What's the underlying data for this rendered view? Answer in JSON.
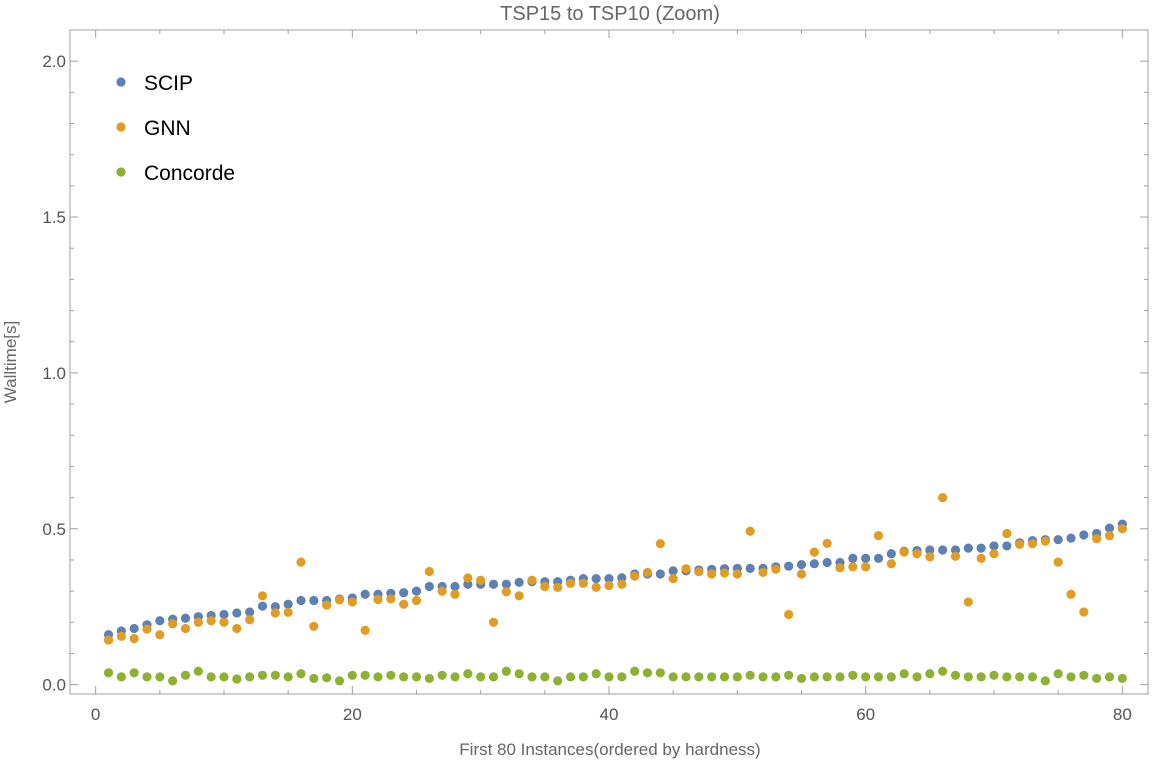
{
  "chart_data": {
    "type": "scatter",
    "title": "TSP15 to TSP10 (Zoom)",
    "xlabel": "First 80 Instances(ordered by hardness)",
    "ylabel": "Walltime[s]",
    "xlim": [
      -2,
      82
    ],
    "ylim": [
      -0.03,
      2.1
    ],
    "x_ticks": [
      0,
      20,
      40,
      60,
      80
    ],
    "y_ticks": [
      0.0,
      0.5,
      1.0,
      1.5,
      2.0
    ],
    "x_tick_labels": [
      "0",
      "20",
      "40",
      "60",
      "80"
    ],
    "y_tick_labels": [
      "0.0",
      "0.5",
      "1.0",
      "1.5",
      "2.0"
    ],
    "grid": false,
    "legend_position": "top-left",
    "series": [
      {
        "name": "SCIP",
        "color": "#5e81b5",
        "x": [
          1,
          2,
          3,
          4,
          5,
          6,
          7,
          8,
          9,
          10,
          11,
          12,
          13,
          14,
          15,
          16,
          17,
          18,
          19,
          20,
          21,
          22,
          23,
          24,
          25,
          26,
          27,
          28,
          29,
          30,
          31,
          32,
          33,
          34,
          35,
          36,
          37,
          38,
          39,
          40,
          41,
          42,
          43,
          44,
          45,
          46,
          47,
          48,
          49,
          50,
          51,
          52,
          53,
          54,
          55,
          56,
          57,
          58,
          59,
          60,
          61,
          62,
          63,
          64,
          65,
          66,
          67,
          68,
          69,
          70,
          71,
          72,
          73,
          74,
          75,
          76,
          77,
          78,
          79,
          80
        ],
        "y": [
          0.16,
          0.172,
          0.18,
          0.192,
          0.205,
          0.21,
          0.213,
          0.218,
          0.222,
          0.225,
          0.23,
          0.233,
          0.252,
          0.25,
          0.258,
          0.27,
          0.27,
          0.27,
          0.275,
          0.278,
          0.29,
          0.29,
          0.293,
          0.295,
          0.3,
          0.315,
          0.315,
          0.315,
          0.322,
          0.322,
          0.322,
          0.322,
          0.328,
          0.33,
          0.33,
          0.33,
          0.335,
          0.34,
          0.34,
          0.34,
          0.343,
          0.355,
          0.355,
          0.355,
          0.365,
          0.365,
          0.368,
          0.37,
          0.372,
          0.373,
          0.373,
          0.373,
          0.378,
          0.38,
          0.385,
          0.388,
          0.392,
          0.392,
          0.405,
          0.405,
          0.405,
          0.42,
          0.428,
          0.43,
          0.432,
          0.432,
          0.432,
          0.438,
          0.438,
          0.445,
          0.445,
          0.455,
          0.462,
          0.465,
          0.465,
          0.47,
          0.48,
          0.485,
          0.502,
          0.515
        ]
      },
      {
        "name": "GNN",
        "color": "#e19c24",
        "x": [
          1,
          2,
          3,
          4,
          5,
          6,
          7,
          8,
          9,
          10,
          11,
          12,
          13,
          14,
          15,
          16,
          17,
          18,
          19,
          20,
          21,
          22,
          23,
          24,
          25,
          26,
          27,
          28,
          29,
          30,
          31,
          32,
          33,
          34,
          35,
          36,
          37,
          38,
          39,
          40,
          41,
          42,
          43,
          44,
          45,
          46,
          47,
          48,
          49,
          50,
          51,
          52,
          53,
          54,
          55,
          56,
          57,
          58,
          59,
          60,
          61,
          62,
          63,
          64,
          65,
          66,
          67,
          68,
          69,
          70,
          71,
          72,
          73,
          74,
          75,
          76,
          77,
          78,
          79,
          80
        ],
        "y": [
          0.143,
          0.155,
          0.148,
          0.178,
          0.16,
          0.195,
          0.18,
          0.2,
          0.205,
          0.2,
          0.18,
          0.208,
          0.285,
          0.23,
          0.232,
          0.393,
          0.187,
          0.255,
          0.272,
          0.265,
          0.174,
          0.273,
          0.275,
          0.258,
          0.27,
          0.363,
          0.3,
          0.29,
          0.342,
          0.335,
          0.2,
          0.298,
          0.285,
          0.335,
          0.315,
          0.312,
          0.325,
          0.325,
          0.312,
          0.318,
          0.322,
          0.348,
          0.36,
          0.452,
          0.34,
          0.372,
          0.362,
          0.355,
          0.358,
          0.355,
          0.492,
          0.36,
          0.37,
          0.225,
          0.355,
          0.425,
          0.453,
          0.375,
          0.378,
          0.378,
          0.478,
          0.388,
          0.425,
          0.42,
          0.41,
          0.6,
          0.412,
          0.265,
          0.405,
          0.42,
          0.485,
          0.45,
          0.452,
          0.46,
          0.393,
          0.29,
          0.233,
          0.468,
          0.478,
          0.5
        ]
      },
      {
        "name": "Concorde",
        "color": "#8fb131",
        "x": [
          1,
          2,
          3,
          4,
          5,
          6,
          7,
          8,
          9,
          10,
          11,
          12,
          13,
          14,
          15,
          16,
          17,
          18,
          19,
          20,
          21,
          22,
          23,
          24,
          25,
          26,
          27,
          28,
          29,
          30,
          31,
          32,
          33,
          34,
          35,
          36,
          37,
          38,
          39,
          40,
          41,
          42,
          43,
          44,
          45,
          46,
          47,
          48,
          49,
          50,
          51,
          52,
          53,
          54,
          55,
          56,
          57,
          58,
          59,
          60,
          61,
          62,
          63,
          64,
          65,
          66,
          67,
          68,
          69,
          70,
          71,
          72,
          73,
          74,
          75,
          76,
          77,
          78,
          79,
          80
        ],
        "y": [
          0.038,
          0.025,
          0.038,
          0.025,
          0.025,
          0.012,
          0.03,
          0.043,
          0.025,
          0.025,
          0.018,
          0.025,
          0.03,
          0.03,
          0.025,
          0.035,
          0.02,
          0.022,
          0.012,
          0.03,
          0.03,
          0.025,
          0.03,
          0.025,
          0.025,
          0.02,
          0.03,
          0.025,
          0.035,
          0.025,
          0.025,
          0.043,
          0.035,
          0.025,
          0.025,
          0.012,
          0.025,
          0.025,
          0.035,
          0.025,
          0.025,
          0.043,
          0.038,
          0.038,
          0.025,
          0.025,
          0.025,
          0.025,
          0.025,
          0.025,
          0.03,
          0.025,
          0.025,
          0.03,
          0.02,
          0.025,
          0.025,
          0.025,
          0.03,
          0.025,
          0.025,
          0.025,
          0.035,
          0.025,
          0.035,
          0.043,
          0.03,
          0.025,
          0.025,
          0.03,
          0.025,
          0.025,
          0.025,
          0.012,
          0.035,
          0.025,
          0.03,
          0.02,
          0.025,
          0.02
        ]
      }
    ]
  }
}
